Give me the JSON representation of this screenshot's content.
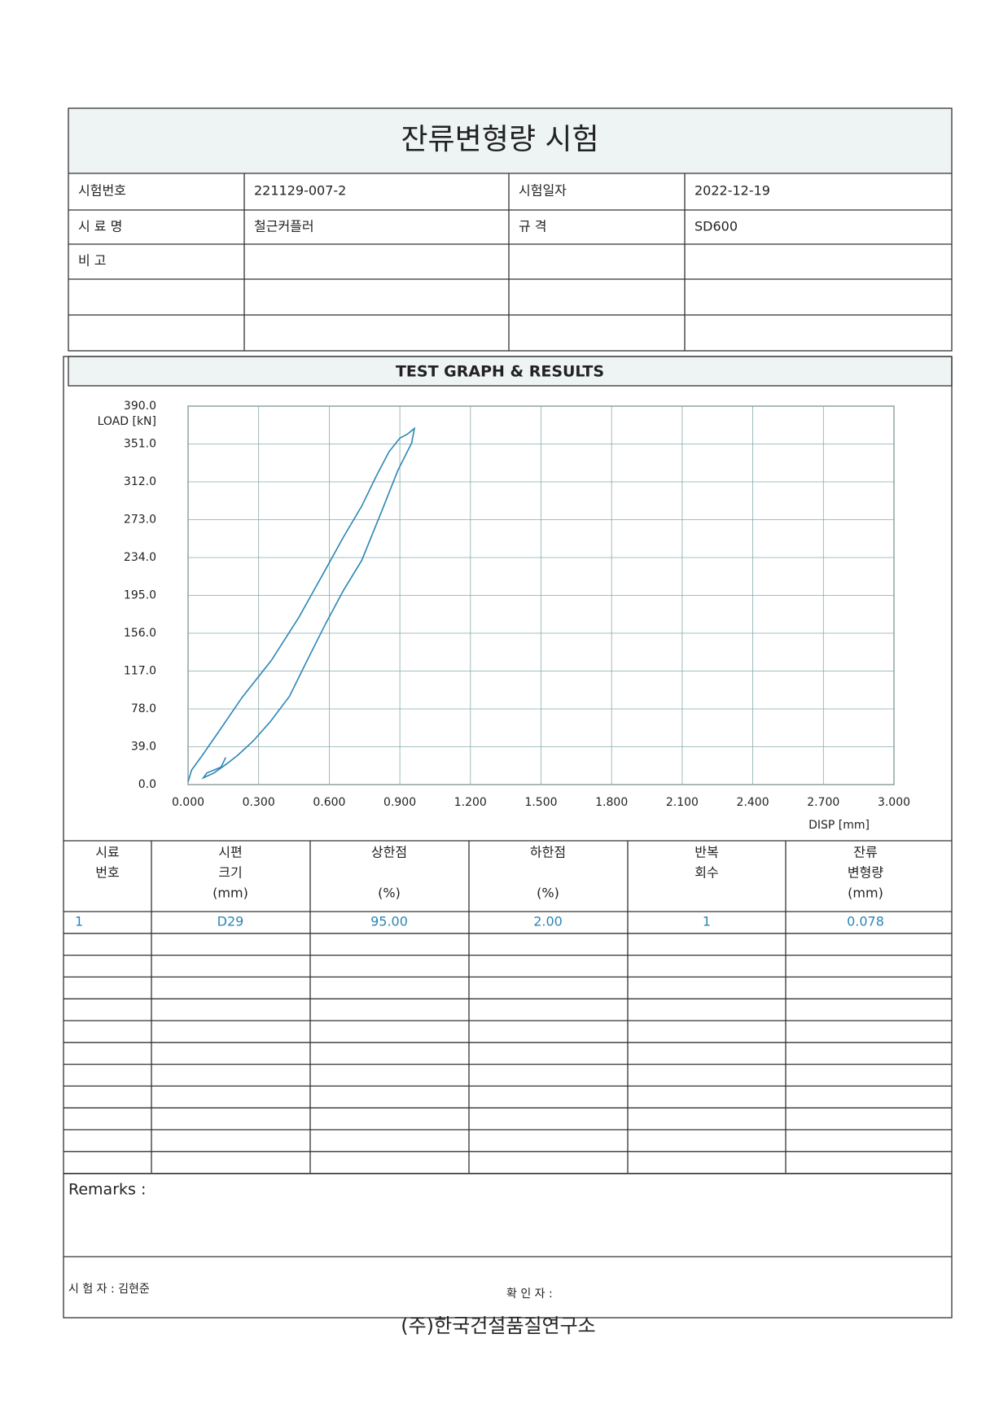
{
  "header": {
    "title": "잔류변형량 시험"
  },
  "info": {
    "rows": [
      [
        "시험번호",
        "221129-007-2",
        "시험일자",
        "2022-12-19"
      ],
      [
        "시 료 명",
        "철근커플러",
        "규    격",
        "SD600"
      ],
      [
        "비    고"
      ]
    ]
  },
  "section_title": "TEST GRAPH & RESULTS",
  "chart_data": {
    "type": "line",
    "y_label": "LOAD [kN]",
    "x_label": "DISP [mm]",
    "color": "#2b86b5",
    "x": [
      0.0,
      0.015,
      0.06,
      0.123,
      0.23,
      0.354,
      0.47,
      0.585,
      0.66,
      0.738,
      0.8,
      0.854,
      0.9,
      0.931,
      0.962,
      0.95,
      0.892,
      0.82,
      0.738,
      0.66,
      0.585,
      0.5,
      0.431,
      0.35,
      0.277,
      0.21,
      0.162,
      0.11,
      0.065,
      0.08,
      0.14,
      0.16
    ],
    "values": [
      3,
      15,
      30,
      52,
      90,
      128,
      172,
      222,
      255,
      287,
      318,
      343,
      357,
      361,
      367,
      352,
      324,
      280,
      231,
      200,
      166,
      125,
      91,
      65,
      45,
      30,
      21,
      12,
      7,
      12,
      18,
      28
    ],
    "xlim": [
      0,
      3
    ],
    "ylim": [
      0,
      390
    ],
    "xticks": [
      {
        "value": 0,
        "label": "0.000"
      },
      {
        "value": 0.3,
        "label": "0.300"
      },
      {
        "value": 0.6,
        "label": "0.600"
      },
      {
        "value": 0.9,
        "label": "0.900"
      },
      {
        "value": 1.2,
        "label": "1.200"
      },
      {
        "value": 1.5,
        "label": "1.500"
      },
      {
        "value": 1.8,
        "label": "1.800"
      },
      {
        "value": 2.1,
        "label": "2.100"
      },
      {
        "value": 2.4,
        "label": "2.400"
      },
      {
        "value": 2.7,
        "label": "2.700"
      },
      {
        "value": 3,
        "label": "3.000"
      }
    ],
    "yticks": [
      {
        "value": 0,
        "label": "0.0"
      },
      {
        "value": 39,
        "label": "39.0"
      },
      {
        "value": 78,
        "label": "78.0"
      },
      {
        "value": 117,
        "label": "117.0"
      },
      {
        "value": 156,
        "label": "156.0"
      },
      {
        "value": 195,
        "label": "195.0"
      },
      {
        "value": 234,
        "label": "234.0"
      },
      {
        "value": 273,
        "label": "273.0"
      },
      {
        "value": 312,
        "label": "312.0"
      },
      {
        "value": 351,
        "label": "351.0"
      },
      {
        "value": 390,
        "label": "390.0"
      }
    ],
    "grid": true
  },
  "table": {
    "columns": [
      [
        "시료",
        "번호"
      ],
      [
        "시편",
        "크기",
        "(mm)"
      ],
      [
        "상한점",
        "",
        "(%)"
      ],
      [
        "하한점",
        "",
        "(%)"
      ],
      [
        "반복",
        "회수"
      ],
      [
        "잔류",
        "변형량",
        "(mm)"
      ]
    ],
    "rows": [
      [
        "1",
        "D29",
        "95.00",
        "2.00",
        "1",
        "0.078"
      ]
    ]
  },
  "remarks": "Remarks :",
  "tester": "시 험 자 : 김현준",
  "approver": "확 인 자 :",
  "footer": "(주)한국건설품질연구소"
}
